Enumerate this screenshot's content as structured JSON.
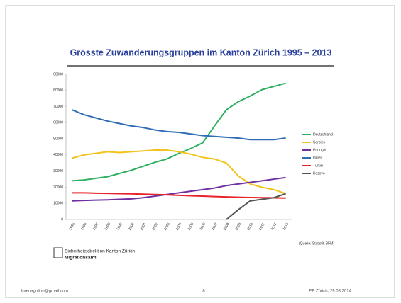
{
  "chart_data": {
    "type": "line",
    "title": "Grösste Zuwanderungsgruppen im Kanton Zürich 1995 – 2013",
    "categories": [
      "1995",
      "1996",
      "1997",
      "1998",
      "1999",
      "2000",
      "2001",
      "2002",
      "2003",
      "2004",
      "2005",
      "2006",
      "2007",
      "2008",
      "2009",
      "2010",
      "2011",
      "2012",
      "2013"
    ],
    "series": [
      {
        "name": "Deutschland",
        "color": "#2eb060",
        "values": [
          24000,
          24500,
          25500,
          26500,
          28500,
          30500,
          33000,
          35500,
          37500,
          41000,
          44000,
          47500,
          58000,
          68000,
          73000,
          76500,
          80500,
          82500,
          84500
        ]
      },
      {
        "name": "Serbien",
        "color": "#f2c31a",
        "values": [
          38000,
          40000,
          41000,
          42000,
          41500,
          42000,
          42500,
          43000,
          43000,
          42000,
          40500,
          38500,
          37500,
          35000,
          27000,
          22000,
          20000,
          18500,
          16000
        ]
      },
      {
        "name": "Portugal",
        "color": "#7030a0",
        "values": [
          11500,
          11800,
          12000,
          12200,
          12500,
          12800,
          13500,
          14500,
          15500,
          16500,
          17500,
          18500,
          19500,
          21000,
          22000,
          23000,
          24000,
          25000,
          26000
        ]
      },
      {
        "name": "Italien",
        "color": "#2e6db5",
        "values": [
          68000,
          65000,
          63000,
          61000,
          59500,
          58000,
          57000,
          55500,
          54500,
          54000,
          53000,
          52000,
          51500,
          51000,
          50500,
          49500,
          49500,
          49500,
          50500
        ]
      },
      {
        "name": "Türkei",
        "color": "#e8232a",
        "values": [
          16500,
          16500,
          16300,
          16200,
          16000,
          15900,
          15700,
          15500,
          15300,
          15000,
          14700,
          14500,
          14200,
          14000,
          13800,
          13600,
          13500,
          13400,
          13300
        ]
      },
      {
        "name": "Kosovo",
        "color": "#555555",
        "values": [
          null,
          null,
          null,
          null,
          null,
          null,
          null,
          null,
          null,
          null,
          null,
          null,
          null,
          0,
          6000,
          11500,
          12500,
          13500,
          16000
        ]
      }
    ],
    "ylim": [
      0,
      90000
    ],
    "yticks": [
      0,
      10000,
      20000,
      30000,
      40000,
      50000,
      60000,
      70000,
      80000,
      90000
    ],
    "legend": "right",
    "source": "(Quelle: Statistik BFM)"
  },
  "logo": {
    "line1": "Sicherheitsdirektion Kanton Zürich",
    "line2": "Migrationsamt"
  },
  "footer": {
    "left": "lorenagulino@gmail.com",
    "center": "8",
    "right": "EB Zürich, 29.08.2014"
  }
}
